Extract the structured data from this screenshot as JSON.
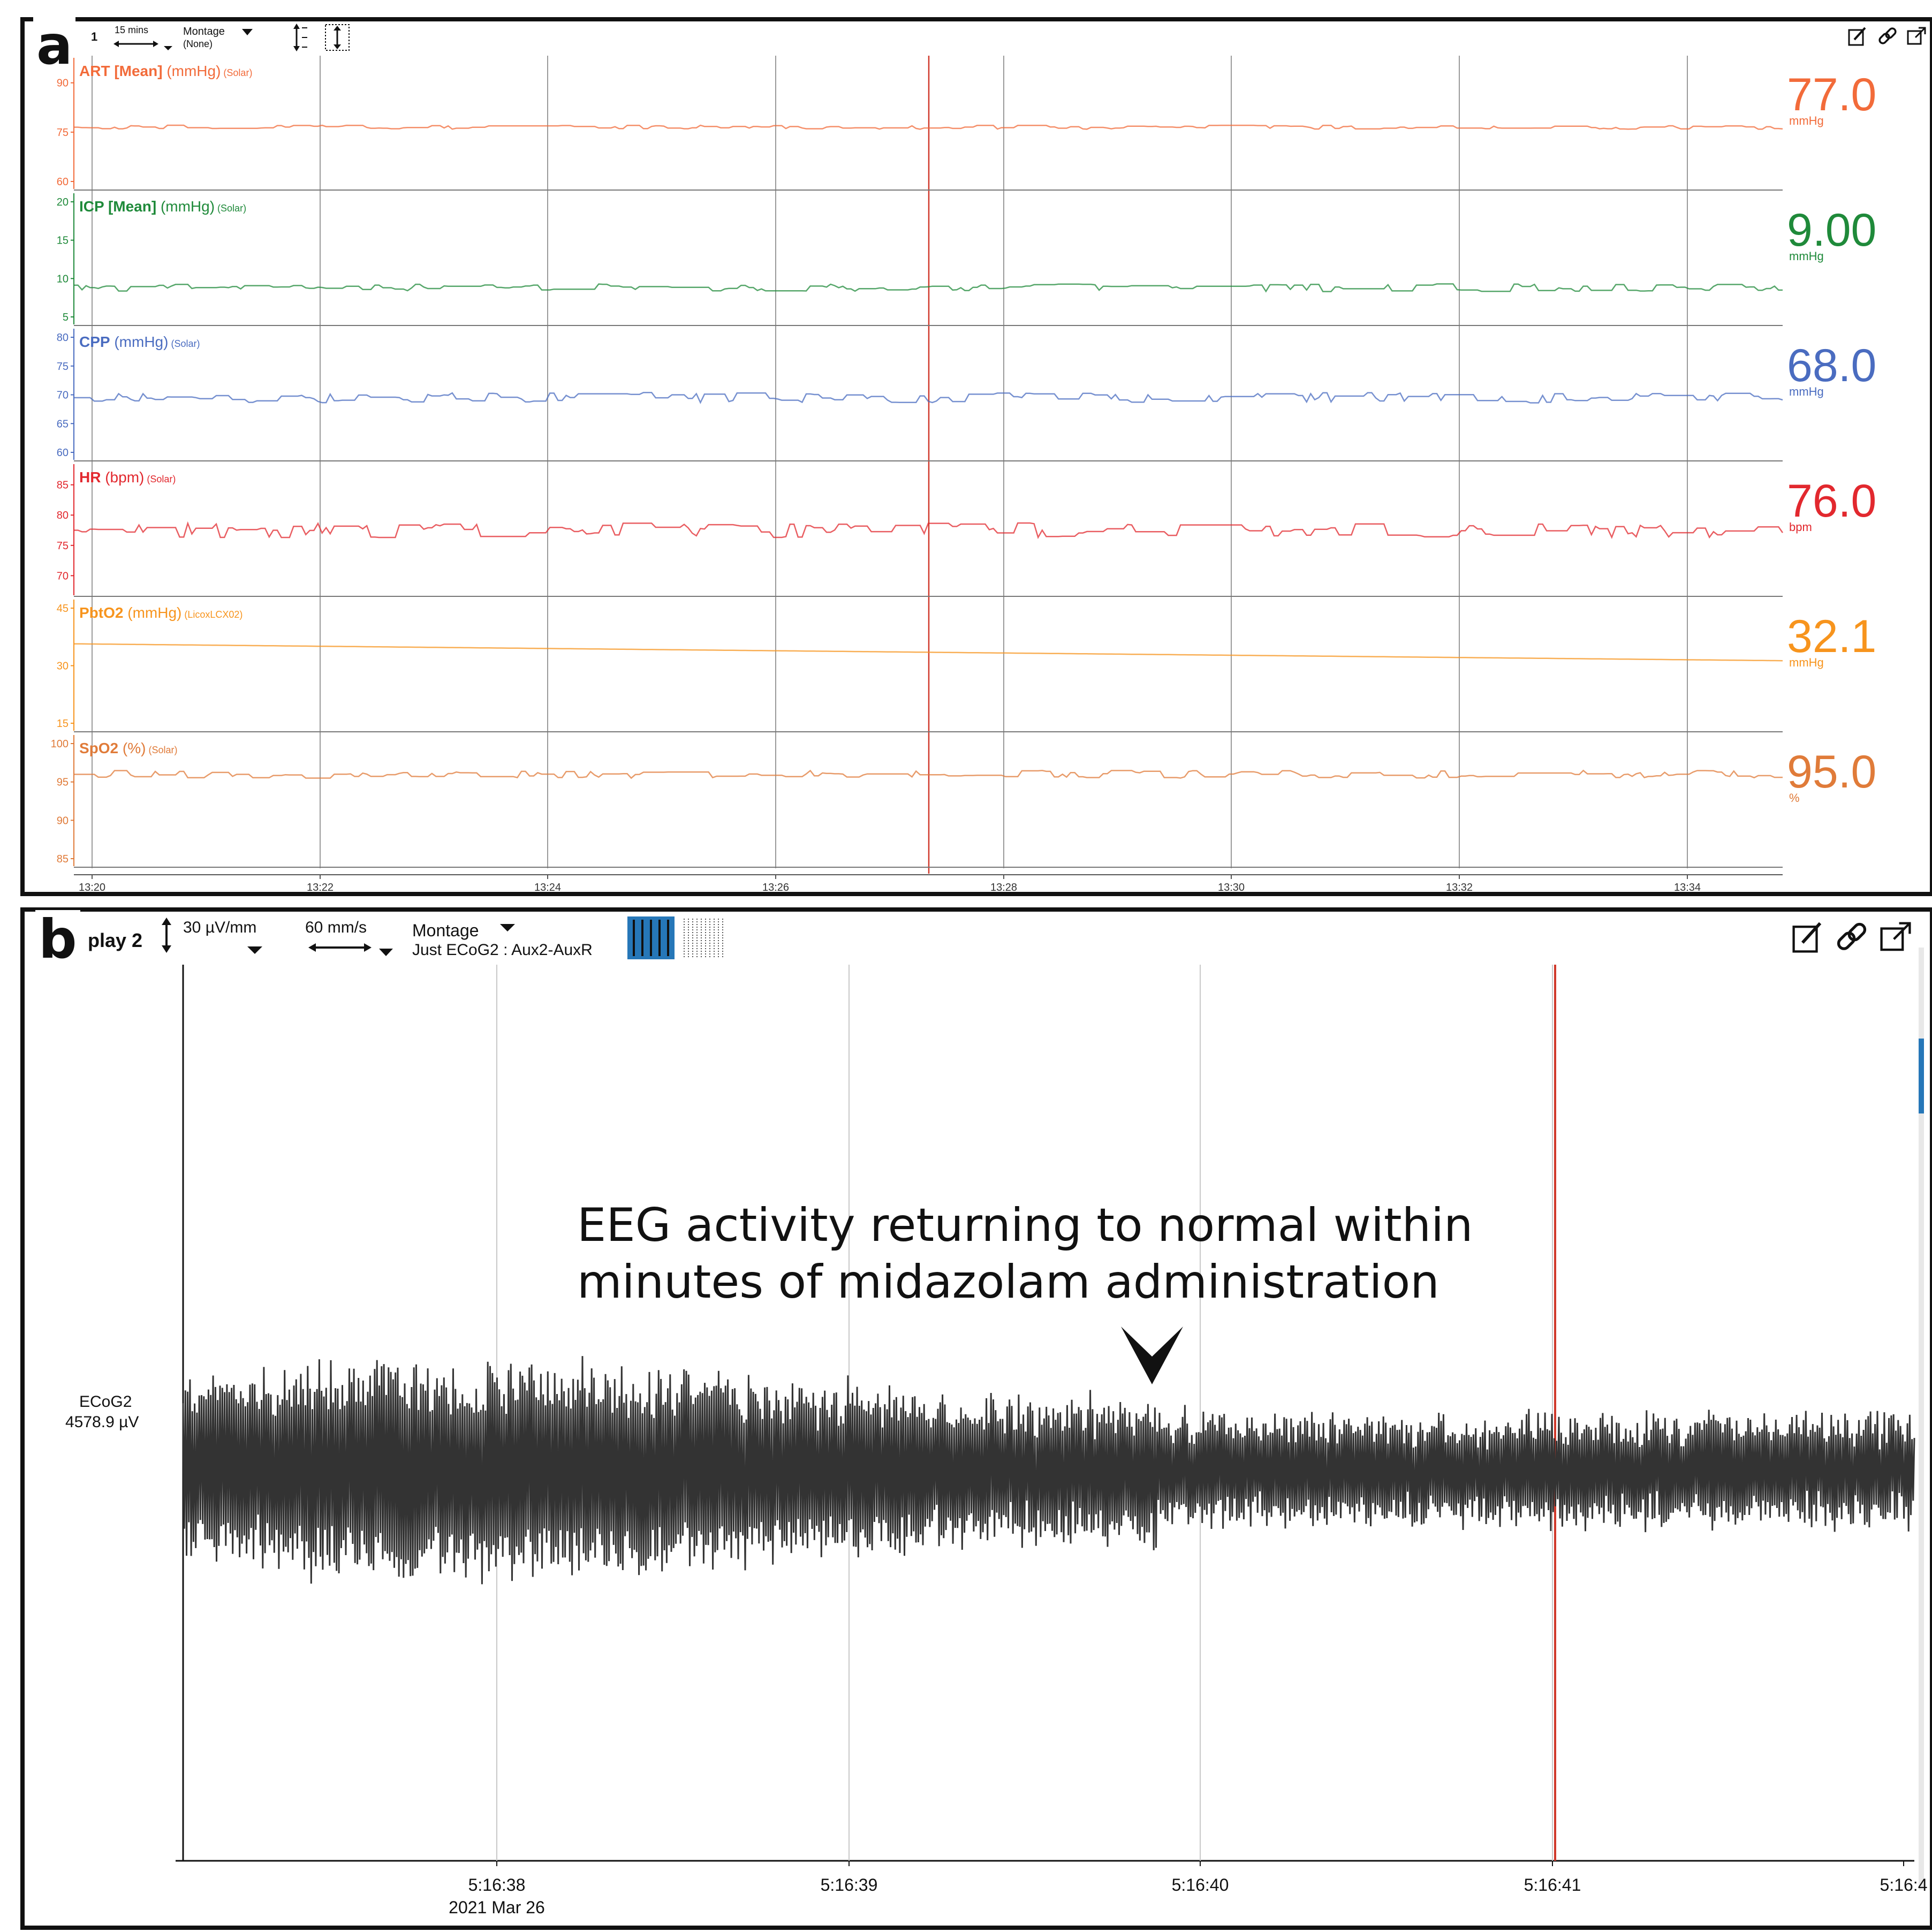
{
  "panel_a": {
    "label": "a",
    "toolbar": {
      "display_label": "1",
      "time_scale": "15 mins",
      "montage_label": "Montage",
      "montage_value": "(None)"
    },
    "time_axis": {
      "ticks": [
        "13:20",
        "13:22",
        "13:24",
        "13:26",
        "13:28",
        "13:30",
        "13:32",
        "13:34"
      ]
    },
    "channels": [
      {
        "name": "ART [Mean]",
        "unit": "(mmHg)",
        "source": "(Solar)",
        "color": "#f26b3a",
        "value": "77.0",
        "value_unit": "mmHg",
        "ticks": [
          "90",
          "75",
          "60"
        ],
        "ylim": [
          60,
          95
        ],
        "base": 76.5,
        "noise": 0.6
      },
      {
        "name": "ICP [Mean]",
        "unit": "(mmHg)",
        "source": "(Solar)",
        "color": "#1f8a3a",
        "value": "9.00",
        "value_unit": "mmHg",
        "ticks": [
          "20",
          "15",
          "10",
          "5"
        ],
        "ylim": [
          5,
          20
        ],
        "base": 8.8,
        "noise": 0.5
      },
      {
        "name": "CPP",
        "unit": "(mmHg)",
        "source": "(Solar)",
        "color": "#4a6cc0",
        "value": "68.0",
        "value_unit": "mmHg",
        "ticks": [
          "80",
          "75",
          "70",
          "65",
          "60"
        ],
        "ylim": [
          60,
          80
        ],
        "base": 69.5,
        "noise": 0.9
      },
      {
        "name": "HR",
        "unit": "(bpm)",
        "source": "(Solar)",
        "color": "#e2282e",
        "value": "76.0",
        "value_unit": "bpm",
        "ticks": [
          "85",
          "80",
          "75",
          "70"
        ],
        "ylim": [
          68,
          87
        ],
        "base": 77.5,
        "noise": 1.2
      },
      {
        "name": "PbtO2",
        "unit": "(mmHg)",
        "source": "(LicoxLCX02)",
        "color": "#f7941d",
        "value": "32.1",
        "value_unit": "mmHg",
        "ticks": [
          "45",
          "30",
          "15"
        ],
        "ylim": [
          15,
          45
        ],
        "base": 33.5,
        "noise": 0
      },
      {
        "name": "SpO2",
        "unit": "(%)",
        "source": "(Solar)",
        "color": "#e07b39",
        "value": "95.0",
        "value_unit": "%",
        "ticks": [
          "100",
          "95",
          "90",
          "85"
        ],
        "ylim": [
          85,
          100
        ],
        "base": 96,
        "noise": 0.5
      }
    ]
  },
  "panel_b": {
    "label": "b",
    "toolbar": {
      "display_label": "play 2",
      "sensitivity": "30 µV/mm",
      "speed": "60 mm/s",
      "montage_label": "Montage",
      "montage_value": "Just ECoG2 : Aux2-AuxR"
    },
    "channel": {
      "name": "ECoG2",
      "scale": "4578.9 µV"
    },
    "time_axis": {
      "ticks": [
        "5:16:38",
        "5:16:39",
        "5:16:40",
        "5:16:41",
        "5:16:4"
      ],
      "date": "2021 Mar 26"
    },
    "annotation": {
      "line1": "EEG activity returning to normal within",
      "line2": "minutes of midazolam administration"
    },
    "colors": {
      "trace": "#333333",
      "cursor": "#d0392b",
      "grid": "#c8c8c8",
      "accent": "#2677b8"
    }
  },
  "icons": [
    "edit-icon",
    "link-icon",
    "popout-icon",
    "vertical-scale-icon",
    "chevron-down-icon"
  ]
}
